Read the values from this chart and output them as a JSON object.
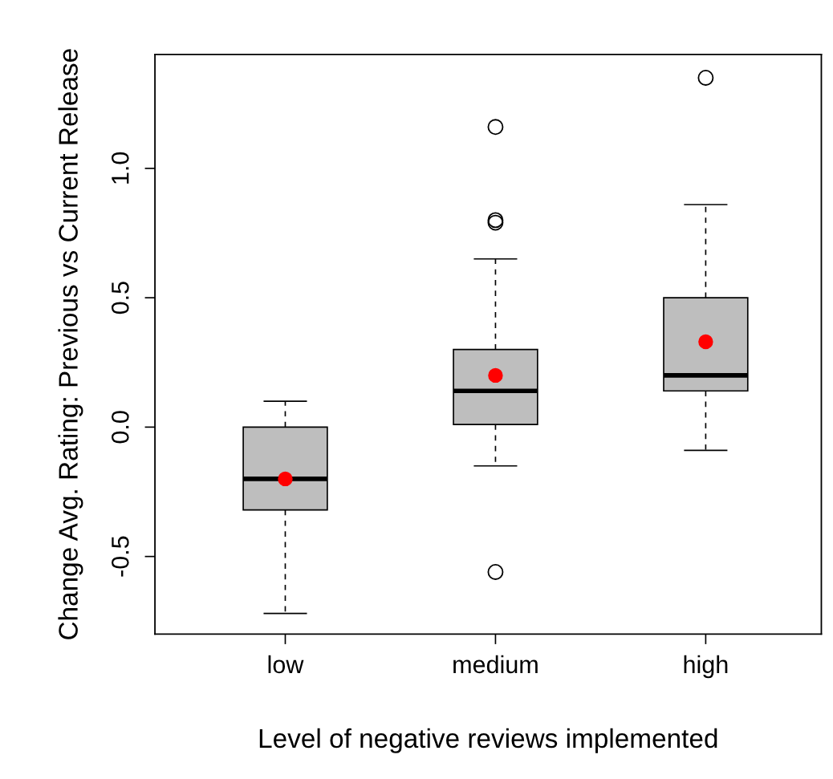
{
  "chart_data": [
    {
      "type": "box",
      "xlabel": "Level of negative reviews implemented",
      "ylabel": "Change Avg. Rating: Previous vs Current Release",
      "categories": [
        "low",
        "medium",
        "high"
      ],
      "color": "#bebebe",
      "boxes": [
        {
          "low": -0.72,
          "q1": -0.32,
          "median": -0.2,
          "q3": 0.0,
          "high": 0.1
        },
        {
          "low": -0.15,
          "q1": 0.01,
          "median": 0.14,
          "q3": 0.3,
          "high": 0.65,
          "outliers": [
            1.16,
            0.8,
            0.79,
            -0.56
          ]
        },
        {
          "low": -0.09,
          "q1": 0.14,
          "median": 0.2,
          "q3": 0.5,
          "high": 0.86,
          "outliers": [
            1.35
          ]
        }
      ],
      "series": [
        {
          "type": "scatter",
          "x": [
            "low",
            "medium",
            "high"
          ],
          "values": [
            -0.2,
            0.2,
            0.33
          ],
          "color": "#ff0000",
          "marker": "circle"
        }
      ],
      "ylim": [
        -0.8,
        1.44
      ],
      "yticks": [
        {
          "value": -0.5,
          "label": "-0.5"
        },
        {
          "value": 0.0,
          "label": "0.0"
        },
        {
          "value": 0.5,
          "label": "0.5"
        },
        {
          "value": 1.0,
          "label": "1.0"
        }
      ],
      "grid": false,
      "legend": false
    }
  ]
}
